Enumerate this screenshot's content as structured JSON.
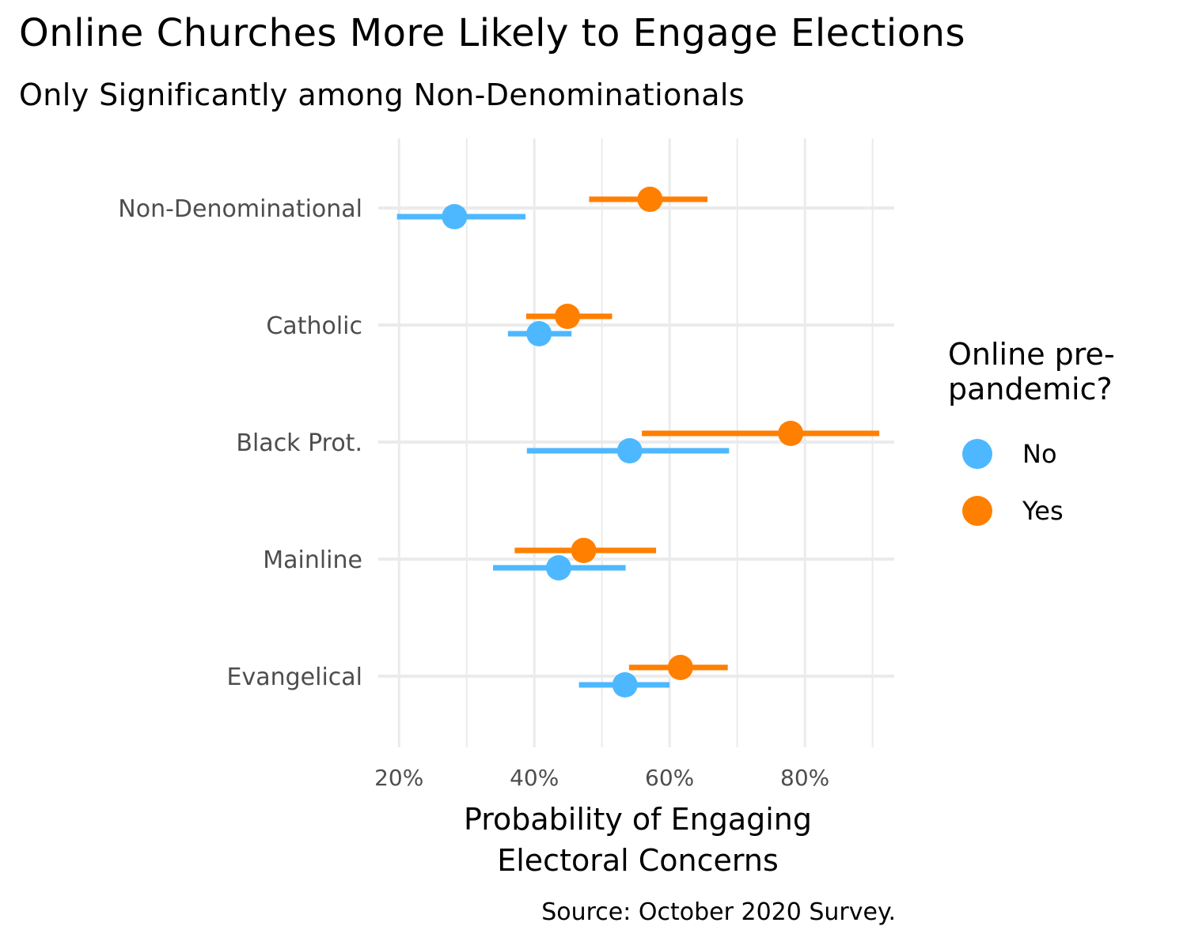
{
  "title": "Online Churches More Likely to Engage Elections",
  "subtitle": "Only Significantly among Non-Denominationals",
  "caption": "Source: October 2020 Survey.",
  "legend": {
    "title_line1": "Online pre-",
    "title_line2": "pandemic?",
    "items": [
      {
        "label": "No",
        "color": "#4DB8FF"
      },
      {
        "label": "Yes",
        "color": "#FF7F00"
      }
    ]
  },
  "chart_data": {
    "type": "scatter",
    "subtype": "dot-and-whisker",
    "title": "Online Churches More Likely to Engage Elections",
    "subtitle": "Only Significantly among Non-Denominationals",
    "xlabel_line1": "Probability of Engaging",
    "xlabel_line2": "Electoral Concerns",
    "ylabel": "",
    "xlim": [
      17.4,
      93.2
    ],
    "x_ticks": [
      20,
      40,
      60,
      80
    ],
    "x_tick_labels": [
      "20%",
      "40%",
      "60%",
      "80%"
    ],
    "x_minor_ticks": [
      30,
      50,
      70,
      90
    ],
    "grid": true,
    "legend_position": "right",
    "categories": [
      "Non-Denominational",
      "Catholic",
      "Black Prot.",
      "Mainline",
      "Evangelical"
    ],
    "series": [
      {
        "name": "No",
        "color": "#4DB8FF",
        "values": [
          28.2,
          40.7,
          54.1,
          43.6,
          53.4
        ],
        "lower": [
          19.7,
          36.1,
          38.9,
          33.9,
          46.6
        ],
        "upper": [
          38.7,
          45.5,
          68.8,
          53.5,
          60.0
        ]
      },
      {
        "name": "Yes",
        "color": "#FF7F00",
        "values": [
          57.1,
          44.9,
          77.9,
          47.3,
          61.6
        ],
        "lower": [
          48.1,
          38.8,
          55.9,
          37.1,
          54.0
        ],
        "upper": [
          65.6,
          51.5,
          91.0,
          58.0,
          68.6
        ]
      }
    ]
  }
}
